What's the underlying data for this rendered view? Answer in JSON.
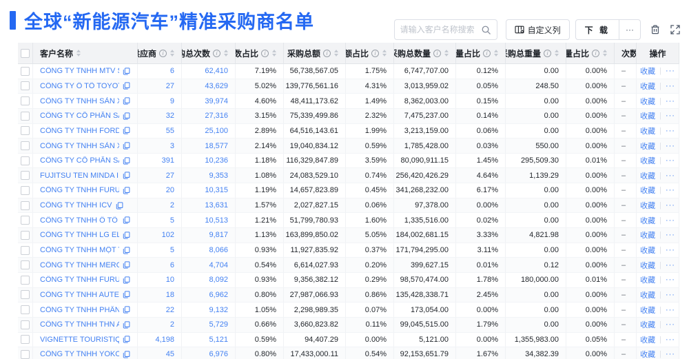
{
  "header": {
    "title": "全球“新能源汽车”精准采购商名单",
    "search_placeholder": "请输入客户名称搜索",
    "customize_button": "自定义列",
    "download_button": "下 载",
    "more_button": "···"
  },
  "icons": {
    "search": "magnifier",
    "customize": "columns-settings",
    "trash": "trash-can",
    "expand": "fullscreen-corners",
    "copy": "copy-document",
    "info": "i",
    "sort": "up-down-carets"
  },
  "colors": {
    "accent": "#2468F2",
    "link": "#4381F2",
    "header_bg": "#F2F3F5"
  },
  "table": {
    "columns": [
      {
        "key": "name",
        "label": "客户名称",
        "info": false,
        "sortable": true,
        "align": "left"
      },
      {
        "key": "supplier",
        "label": "供应商",
        "info": true,
        "sortable": true,
        "align": "right"
      },
      {
        "key": "count",
        "label": "采购总次数",
        "info": true,
        "sortable": true,
        "align": "right"
      },
      {
        "key": "count_pct",
        "label": "次数占比",
        "info": true,
        "sortable": true,
        "align": "right"
      },
      {
        "key": "amount",
        "label": "采购总额",
        "info": true,
        "sortable": true,
        "align": "right"
      },
      {
        "key": "amount_pct",
        "label": "总额占比",
        "info": true,
        "sortable": true,
        "align": "right"
      },
      {
        "key": "qty",
        "label": "采购总数量",
        "info": true,
        "sortable": true,
        "align": "right"
      },
      {
        "key": "qty_pct",
        "label": "数量占比",
        "info": true,
        "sortable": true,
        "align": "right"
      },
      {
        "key": "weight",
        "label": "采购总重量",
        "info": true,
        "sortable": true,
        "align": "right"
      },
      {
        "key": "weight_pct",
        "label": "重量占比",
        "info": true,
        "sortable": true,
        "align": "right"
      },
      {
        "key": "trend",
        "label": "次数趋势",
        "info": false,
        "sortable": false,
        "align": "left"
      },
      {
        "key": "actions",
        "label": "操作",
        "info": false,
        "sortable": false,
        "align": "center"
      }
    ],
    "row_actions": {
      "favorite": "收藏",
      "more": "···"
    },
    "rows": [
      {
        "name": "CÔNG TY TNHH MTV SẢN XUẤ...",
        "supplier": "6",
        "count": "62,410",
        "count_pct": "7.19%",
        "amount": "56,738,567.05",
        "amount_pct": "1.75%",
        "qty": "6,747,707.00",
        "qty_pct": "0.12%",
        "weight": "0.00",
        "weight_pct": "0.00%",
        "trend": "–"
      },
      {
        "name": "CÔNG TY Ô TÔ TOYOTA VIỆT ...",
        "supplier": "27",
        "count": "43,629",
        "count_pct": "5.02%",
        "amount": "139,776,561.16",
        "amount_pct": "4.31%",
        "qty": "3,013,959.02",
        "qty_pct": "0.05%",
        "weight": "248.50",
        "weight_pct": "0.00%",
        "trend": "–"
      },
      {
        "name": "CÔNG TY TNHH SẢN XUẤT VÀ ...",
        "supplier": "9",
        "count": "39,974",
        "count_pct": "4.60%",
        "amount": "48,411,173.62",
        "amount_pct": "1.49%",
        "qty": "8,362,003.00",
        "qty_pct": "0.15%",
        "weight": "0.00",
        "weight_pct": "0.00%",
        "trend": "–"
      },
      {
        "name": "CÔNG TY CỔ PHẦN SẢN XUẤT...",
        "supplier": "32",
        "count": "27,316",
        "count_pct": "3.15%",
        "amount": "75,339,499.86",
        "amount_pct": "2.32%",
        "qty": "7,475,237.00",
        "qty_pct": "0.14%",
        "weight": "0.00",
        "weight_pct": "0.00%",
        "trend": "–"
      },
      {
        "name": "CÔNG TY TNHH FORD VIỆT NAM",
        "supplier": "55",
        "count": "25,100",
        "count_pct": "2.89%",
        "amount": "64,516,143.61",
        "amount_pct": "1.99%",
        "qty": "3,213,159.00",
        "qty_pct": "0.06%",
        "weight": "0.00",
        "weight_pct": "0.00%",
        "trend": "–"
      },
      {
        "name": "CÔNG TY TNHH SẢN XUẤT VÀ ...",
        "supplier": "3",
        "count": "18,577",
        "count_pct": "2.14%",
        "amount": "19,040,834.12",
        "amount_pct": "0.59%",
        "qty": "1,785,428.00",
        "qty_pct": "0.03%",
        "weight": "550.00",
        "weight_pct": "0.00%",
        "trend": "–"
      },
      {
        "name": "CÔNG TY CỔ PHẦN SẢN XUẤT...",
        "supplier": "391",
        "count": "10,236",
        "count_pct": "1.18%",
        "amount": "116,329,847.89",
        "amount_pct": "3.59%",
        "qty": "80,090,911.15",
        "qty_pct": "1.45%",
        "weight": "295,509.30",
        "weight_pct": "0.01%",
        "trend": "–"
      },
      {
        "name": "FUJITSU TEN MINDA INDIA PVT...",
        "supplier": "27",
        "count": "9,353",
        "count_pct": "1.08%",
        "amount": "24,083,529.10",
        "amount_pct": "0.74%",
        "qty": "256,420,426.29",
        "qty_pct": "4.64%",
        "weight": "1,139.29",
        "weight_pct": "0.00%",
        "trend": "–"
      },
      {
        "name": "CÔNG TY TNHH FURUKAWA A...",
        "supplier": "20",
        "count": "10,315",
        "count_pct": "1.19%",
        "amount": "14,657,823.89",
        "amount_pct": "0.45%",
        "qty": "341,268,232.00",
        "qty_pct": "6.17%",
        "weight": "0.00",
        "weight_pct": "0.00%",
        "trend": "–"
      },
      {
        "name": "CÔNG TY TNHH ICV",
        "supplier": "2",
        "count": "13,631",
        "count_pct": "1.57%",
        "amount": "2,027,827.15",
        "amount_pct": "0.06%",
        "qty": "97,378.00",
        "qty_pct": "0.00%",
        "weight": "0.00",
        "weight_pct": "0.00%",
        "trend": "–"
      },
      {
        "name": "CÔNG TY TNHH Ô TÔ MITSUBI...",
        "supplier": "5",
        "count": "10,513",
        "count_pct": "1.21%",
        "amount": "51,799,780.93",
        "amount_pct": "1.60%",
        "qty": "1,335,516.00",
        "qty_pct": "0.02%",
        "weight": "0.00",
        "weight_pct": "0.00%",
        "trend": "–"
      },
      {
        "name": "CÔNG TY TNHH LG ELECTRON...",
        "supplier": "102",
        "count": "9,817",
        "count_pct": "1.13%",
        "amount": "163,899,850.02",
        "amount_pct": "5.05%",
        "qty": "184,002,681.15",
        "qty_pct": "3.33%",
        "weight": "4,821.98",
        "weight_pct": "0.00%",
        "trend": "–"
      },
      {
        "name": "CÔNG TY TNHH MỘT THÀNH V...",
        "supplier": "5",
        "count": "8,066",
        "count_pct": "0.93%",
        "amount": "11,927,835.92",
        "amount_pct": "0.37%",
        "qty": "171,794,295.00",
        "qty_pct": "3.11%",
        "weight": "0.00",
        "weight_pct": "0.00%",
        "trend": "–"
      },
      {
        "name": "CÔNG TY TNHH MERCEDES–B...",
        "supplier": "6",
        "count": "4,704",
        "count_pct": "0.54%",
        "amount": "6,614,027.93",
        "amount_pct": "0.20%",
        "qty": "399,627.15",
        "qty_pct": "0.01%",
        "weight": "0.12",
        "weight_pct": "0.00%",
        "trend": "–"
      },
      {
        "name": "CÔNG TY TNHH FURUKAWA A...",
        "supplier": "10",
        "count": "8,092",
        "count_pct": "0.93%",
        "amount": "9,356,382.12",
        "amount_pct": "0.29%",
        "qty": "98,570,474.00",
        "qty_pct": "1.78%",
        "weight": "180,000.00",
        "weight_pct": "0.01%",
        "trend": "–"
      },
      {
        "name": "CÔNG TY TNHH AUTEL VIỆT N...",
        "supplier": "18",
        "count": "6,962",
        "count_pct": "0.80%",
        "amount": "27,987,066.93",
        "amount_pct": "0.86%",
        "qty": "135,428,338.71",
        "qty_pct": "2.45%",
        "weight": "0.00",
        "weight_pct": "0.00%",
        "trend": "–"
      },
      {
        "name": "CÔNG TY TNHH PHÂN PHỐI T...",
        "supplier": "22",
        "count": "9,132",
        "count_pct": "1.05%",
        "amount": "2,298,989.35",
        "amount_pct": "0.07%",
        "qty": "173,054.00",
        "qty_pct": "0.00%",
        "weight": "0.00",
        "weight_pct": "0.00%",
        "trend": "–"
      },
      {
        "name": "CÔNG TY TNHH THN AUTOPAR...",
        "supplier": "2",
        "count": "5,729",
        "count_pct": "0.66%",
        "amount": "3,660,823.82",
        "amount_pct": "0.11%",
        "qty": "99,045,515.00",
        "qty_pct": "1.79%",
        "weight": "0.00",
        "weight_pct": "0.00%",
        "trend": "–"
      },
      {
        "name": "VIGNETTE TOURISTIQUE G UNI...",
        "supplier": "4,198",
        "count": "5,121",
        "count_pct": "0.59%",
        "amount": "94,407.29",
        "amount_pct": "0.00%",
        "qty": "5,121.00",
        "qty_pct": "0.00%",
        "weight": "1,355,983.00",
        "weight_pct": "0.05%",
        "trend": "–"
      },
      {
        "name": "CÔNG TY TNHH YOKOWO VIỆT...",
        "supplier": "45",
        "count": "6,976",
        "count_pct": "0.80%",
        "amount": "17,433,000.11",
        "amount_pct": "0.54%",
        "qty": "92,153,651.79",
        "qty_pct": "1.67%",
        "weight": "34,382.39",
        "weight_pct": "0.00%",
        "trend": "–"
      }
    ]
  }
}
